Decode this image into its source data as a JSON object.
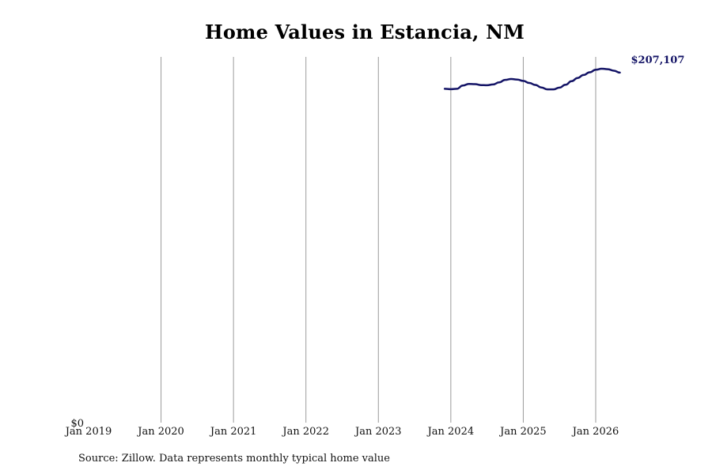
{
  "chart_data": {
    "type": "line",
    "title": "Home Values in Estancia, NM",
    "xlabel": "",
    "ylabel": "",
    "x_ticks": [
      "Jan 2019",
      "Jan 2020",
      "Jan 2021",
      "Jan 2022",
      "Jan 2023",
      "Jan 2024",
      "Jan 2025",
      "Jan 2026"
    ],
    "x_range": [
      "Jan 2019",
      "Jul 2026"
    ],
    "y_ticks": [
      "$0"
    ],
    "ylim": [
      0,
      215000
    ],
    "grid": "vertical lines at each January",
    "series": [
      {
        "color": "#141466",
        "end_label": "$207,107",
        "points": [
          {
            "x": "2023-12",
            "y": 197500
          },
          {
            "x": "2024-01",
            "y": 197300
          },
          {
            "x": "2024-02",
            "y": 197500
          },
          {
            "x": "2024-03",
            "y": 199500
          },
          {
            "x": "2024-04",
            "y": 200400
          },
          {
            "x": "2024-05",
            "y": 200300
          },
          {
            "x": "2024-06",
            "y": 199700
          },
          {
            "x": "2024-07",
            "y": 199600
          },
          {
            "x": "2024-08",
            "y": 200100
          },
          {
            "x": "2024-09",
            "y": 201300
          },
          {
            "x": "2024-10",
            "y": 202800
          },
          {
            "x": "2024-11",
            "y": 203300
          },
          {
            "x": "2024-12",
            "y": 203000
          },
          {
            "x": "2025-01",
            "y": 202200
          },
          {
            "x": "2025-02",
            "y": 201000
          },
          {
            "x": "2025-03",
            "y": 199800
          },
          {
            "x": "2025-04",
            "y": 198300
          },
          {
            "x": "2025-05",
            "y": 197200
          },
          {
            "x": "2025-06",
            "y": 197200
          },
          {
            "x": "2025-07",
            "y": 198200
          },
          {
            "x": "2025-08",
            "y": 199900
          },
          {
            "x": "2025-09",
            "y": 202000
          },
          {
            "x": "2025-10",
            "y": 203900
          },
          {
            "x": "2025-11",
            "y": 205700
          },
          {
            "x": "2025-12",
            "y": 207300
          },
          {
            "x": "2026-01",
            "y": 208800
          },
          {
            "x": "2026-02",
            "y": 209400
          },
          {
            "x": "2026-03",
            "y": 209100
          },
          {
            "x": "2026-04",
            "y": 208200
          },
          {
            "x": "2026-05",
            "y": 207107
          }
        ]
      }
    ],
    "source": "Source: Zillow. Data represents monthly typical home value"
  }
}
